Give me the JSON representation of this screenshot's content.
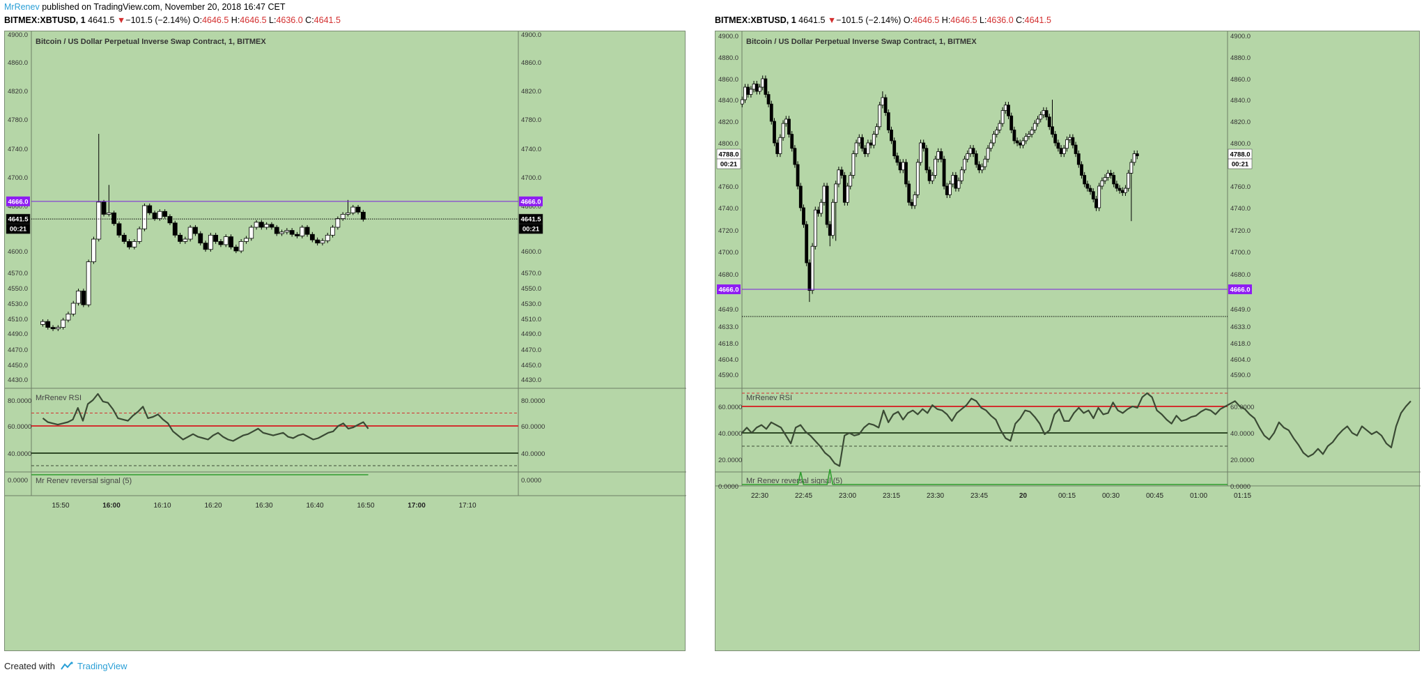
{
  "header": {
    "author": "MrRenev",
    "published_text": " published on TradingView.com, November 20, 2018 16:47 CET"
  },
  "quote": {
    "symbol": "BITMEX:XBTUSD, 1",
    "last": "4641.5",
    "change": "−101.5 (−2.14%)",
    "o_label": "O:",
    "o": "4646.5",
    "h_label": "H:",
    "h": "4646.5",
    "l_label": "L:",
    "l": "4636.0",
    "c_label": "C:",
    "c": "4641.5"
  },
  "footer": {
    "created_with": "Created with",
    "brand": "TradingView"
  },
  "colors": {
    "background": "#b5d6a7",
    "purple_line": "#7b1fe0",
    "rsi_red": "#d32f2f",
    "rsi_line": "#3a4a34",
    "signal": "#2e9c2e"
  },
  "chart_data": [
    {
      "type": "candlestick",
      "title": "Bitcoin / US Dollar Perpetual Inverse Swap Contract, 1, BITMEX",
      "price_ticks": [
        "4900.0",
        "4860.0",
        "4820.0",
        "4780.0",
        "4740.0",
        "4700.0",
        "4660.0",
        "4630.0",
        "4600.0",
        "4570.0",
        "4550.0",
        "4530.0",
        "4510.0",
        "4490.0",
        "4470.0",
        "4450.0",
        "4430.0"
      ],
      "x_ticks": [
        {
          "t": 0,
          "label": "15:50",
          "bold": false
        },
        {
          "t": 10,
          "label": "16:00",
          "bold": true
        },
        {
          "t": 20,
          "label": "16:10",
          "bold": false
        },
        {
          "t": 30,
          "label": "16:20",
          "bold": false
        },
        {
          "t": 40,
          "label": "16:30",
          "bold": false
        },
        {
          "t": 50,
          "label": "16:40",
          "bold": false
        },
        {
          "t": 60,
          "label": "16:50",
          "bold": false
        },
        {
          "t": 70,
          "label": "17:00",
          "bold": true
        },
        {
          "t": 80,
          "label": "17:10",
          "bold": false
        }
      ],
      "level_line": {
        "value": "4666.0"
      },
      "last_price": {
        "value": "4641.5",
        "countdown": "00:21"
      },
      "candles": {
        "t_start": -3.5,
        "closes": [
          4506,
          4498,
          4496,
          4498,
          4508,
          4516,
          4530,
          4546,
          4528,
          4585,
          4615,
          4665,
          4648,
          4650,
          4635,
          4620,
          4612,
          4605,
          4612,
          4628,
          4660,
          4650,
          4642,
          4652,
          4645,
          4636,
          4620,
          4612,
          4615,
          4630,
          4622,
          4610,
          4602,
          4620,
          4612,
          4608,
          4618,
          4605,
          4600,
          4612,
          4616,
          4630,
          4637,
          4630,
          4634,
          4630,
          4622,
          4624,
          4626,
          4621,
          4619,
          4630,
          4621,
          4614,
          4610,
          4613,
          4620,
          4630,
          4642,
          4648,
          4650,
          4658,
          4651,
          4641
        ],
        "spikes": {
          "11": 4760,
          "13": 4689,
          "60": 4668
        }
      },
      "rsi": {
        "name": "MrRenev RSI",
        "ticks": [
          "80.0000",
          "60.0000",
          "40.0000"
        ],
        "levels": {
          "upper_dashed": 70,
          "red": 60,
          "green": 40,
          "lower_dashed": 30
        },
        "values": [
          66,
          63,
          62,
          61,
          62,
          63,
          65,
          74,
          64,
          77,
          80,
          84,
          79,
          78,
          73,
          66,
          65,
          64,
          68,
          71,
          75,
          66,
          67,
          69,
          65,
          62,
          56,
          53,
          50,
          52,
          54,
          52,
          51,
          50,
          53,
          55,
          52,
          50,
          49,
          51,
          53,
          54,
          56,
          58,
          55,
          54,
          53,
          54,
          55,
          52,
          51,
          53,
          54,
          52,
          50,
          51,
          53,
          55,
          56,
          60,
          62,
          58,
          59,
          61,
          63,
          58
        ]
      },
      "signal": {
        "name": "Mr Renev reversal signal (5)",
        "tick": "0.0000",
        "spikes": []
      }
    },
    {
      "type": "candlestick",
      "title": "Bitcoin / US Dollar Perpetual Inverse Swap Contract, 1, BITMEX",
      "price_ticks": [
        "4900.0",
        "4880.0",
        "4860.0",
        "4840.0",
        "4820.0",
        "4800.0",
        "4780.0",
        "4760.0",
        "4740.0",
        "4720.0",
        "4700.0",
        "4680.0",
        "4649.0",
        "4633.0",
        "4618.0",
        "4604.0",
        "4590.0"
      ],
      "x_ticks": [
        {
          "t": 0,
          "label": "22:30",
          "bold": false
        },
        {
          "t": 15,
          "label": "22:45",
          "bold": false
        },
        {
          "t": 30,
          "label": "23:00",
          "bold": false
        },
        {
          "t": 45,
          "label": "23:15",
          "bold": false
        },
        {
          "t": 60,
          "label": "23:30",
          "bold": false
        },
        {
          "t": 75,
          "label": "23:45",
          "bold": false
        },
        {
          "t": 90,
          "label": "20",
          "bold": true
        },
        {
          "t": 105,
          "label": "00:15",
          "bold": false
        },
        {
          "t": 120,
          "label": "00:30",
          "bold": false
        },
        {
          "t": 135,
          "label": "00:45",
          "bold": false
        },
        {
          "t": 150,
          "label": "01:00",
          "bold": false
        },
        {
          "t": 165,
          "label": "01:15",
          "bold": false
        }
      ],
      "level_line": {
        "value": "4666.0"
      },
      "last_price": {
        "value": "4788.0",
        "countdown": "00:21"
      },
      "candles": {
        "t_start": -6,
        "closes": [
          4840,
          4852,
          4845,
          4850,
          4855,
          4848,
          4852,
          4860,
          4845,
          4836,
          4820,
          4800,
          4790,
          4805,
          4818,
          4822,
          4808,
          4795,
          4780,
          4760,
          4740,
          4725,
          4690,
          4665,
          4705,
          4738,
          4735,
          4745,
          4760,
          4725,
          4715,
          4745,
          4762,
          4775,
          4770,
          4745,
          4760,
          4770,
          4790,
          4800,
          4805,
          4795,
          4790,
          4800,
          4798,
          4808,
          4815,
          4835,
          4842,
          4828,
          4812,
          4802,
          4788,
          4782,
          4775,
          4782,
          4762,
          4745,
          4742,
          4752,
          4782,
          4800,
          4795,
          4775,
          4765,
          4770,
          4785,
          4792,
          4785,
          4760,
          4752,
          4762,
          4770,
          4758,
          4765,
          4775,
          4785,
          4790,
          4795,
          4790,
          4780,
          4775,
          4778,
          4785,
          4795,
          4800,
          4808,
          4812,
          4818,
          4830,
          4835,
          4825,
          4812,
          4802,
          4800,
          4798,
          4802,
          4806,
          4808,
          4812,
          4818,
          4822,
          4826,
          4830,
          4824,
          4815,
          4808,
          4800,
          4795,
          4790,
          4795,
          4803,
          4805,
          4798,
          4790,
          4780,
          4770,
          4762,
          4758,
          4755,
          4748,
          4740,
          4760,
          4765,
          4768,
          4772,
          4770,
          4762,
          4758,
          4756,
          4754,
          4758,
          4772,
          4782,
          4790,
          4788
        ],
        "spikes": {
          "23": 4655,
          "30": 4705,
          "32": 4710,
          "48": 4848,
          "106": 4840,
          "133": 4728
        }
      },
      "rsi": {
        "name": "MrRenev RSI",
        "ticks": [
          "60.0000",
          "40.0000",
          "20.0000"
        ],
        "levels": {
          "upper_dashed": 70,
          "red": 60,
          "green": 40,
          "lower_dashed": 30
        },
        "values": [
          40,
          44,
          40,
          44,
          46,
          43,
          48,
          46,
          44,
          38,
          32,
          44,
          46,
          41,
          38,
          34,
          30,
          25,
          22,
          17,
          15,
          38,
          40,
          38,
          39,
          44,
          47,
          46,
          44,
          57,
          48,
          54,
          56,
          50,
          55,
          57,
          54,
          58,
          55,
          61,
          58,
          57,
          54,
          49,
          55,
          58,
          61,
          66,
          64,
          59,
          57,
          53,
          50,
          42,
          36,
          34,
          47,
          51,
          57,
          56,
          52,
          47,
          39,
          42,
          54,
          58,
          49,
          49,
          55,
          59,
          55,
          57,
          51,
          59,
          54,
          55,
          63,
          57,
          55,
          58,
          60,
          59,
          67,
          70,
          67,
          57,
          54,
          50,
          47,
          53,
          49,
          50,
          52,
          53,
          56,
          58,
          57,
          54,
          58,
          60,
          62,
          64,
          60,
          58,
          54,
          51,
          44,
          38,
          35,
          40,
          48,
          44,
          42,
          36,
          31,
          25,
          22,
          24,
          28,
          24,
          30,
          33,
          38,
          42,
          45,
          40,
          38,
          45,
          42,
          39,
          41,
          38,
          32,
          29,
          45,
          55,
          60,
          64
        ],
        "n_slots": 166
      },
      "signal": {
        "name": "Mr Renev reversal signal (5)",
        "tick": "0.0000",
        "spikes": [
          {
            "t": 14,
            "h": 18
          },
          {
            "t": 24,
            "h": 22
          }
        ]
      }
    }
  ]
}
